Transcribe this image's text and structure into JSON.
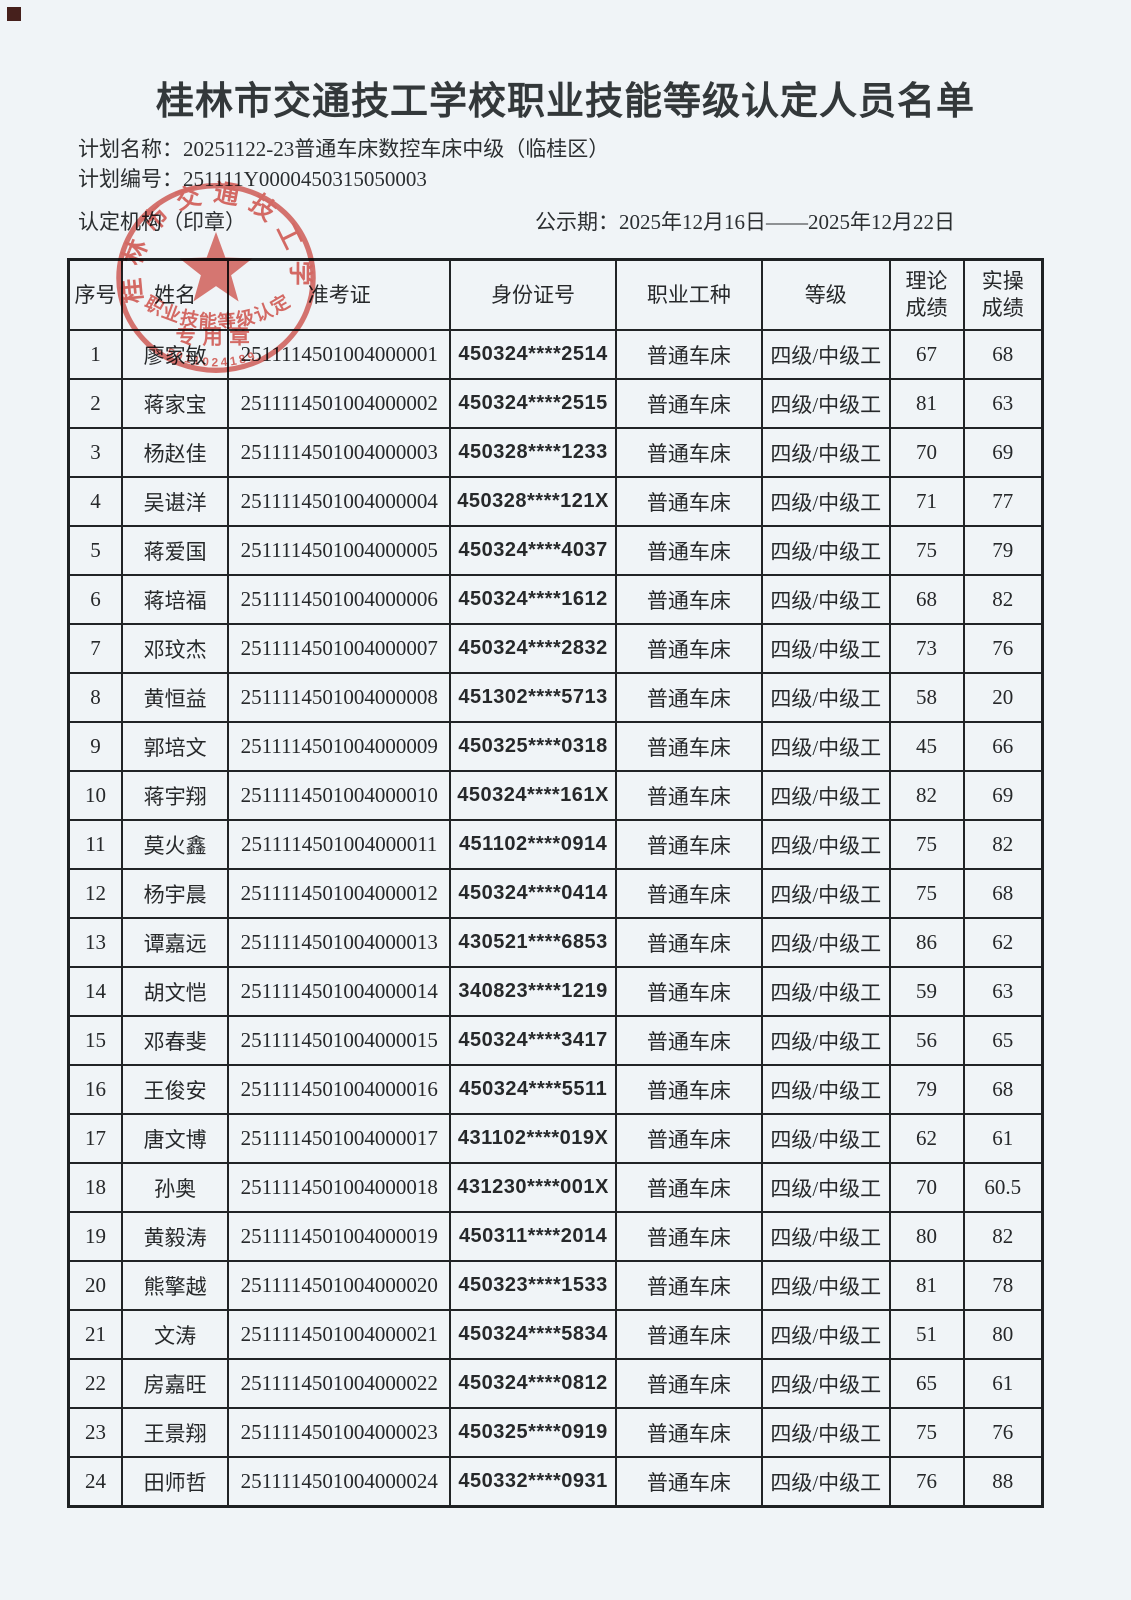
{
  "header": {
    "title": "桂林市交通技工学校职业技能等级认定人员名单",
    "plan_name_label": "计划名称：",
    "plan_name": "20251122-23普通车床数控车床中级（临桂区）",
    "plan_no_label": "计划编号：",
    "plan_no": "251111Y0000450315050003",
    "org_label": "认定机构（印章）",
    "publicity_label": "公示期：",
    "publicity_period": "2025年12月16日——2025年12月22日"
  },
  "seal": {
    "ring_text": "桂林市交通技工学校",
    "cert_text": "职业技能等级认定",
    "seal_type": "专用章",
    "number": "5011024189",
    "color": "#d9534b"
  },
  "table": {
    "headers": [
      "序号",
      "姓名",
      "准考证",
      "身份证号",
      "职业工种",
      "等级",
      "理论\n成绩",
      "实操\n成绩"
    ],
    "col_keys": [
      "index",
      "name",
      "ticket-no",
      "id-no",
      "occupation",
      "level",
      "theory-score",
      "practice-score"
    ],
    "rows": [
      [
        "1",
        "廖家敏",
        "2511114501004000001",
        "450324****2514",
        "普通车床",
        "四级/中级工",
        "67",
        "68"
      ],
      [
        "2",
        "蒋家宝",
        "2511114501004000002",
        "450324****2515",
        "普通车床",
        "四级/中级工",
        "81",
        "63"
      ],
      [
        "3",
        "杨赵佳",
        "2511114501004000003",
        "450328****1233",
        "普通车床",
        "四级/中级工",
        "70",
        "69"
      ],
      [
        "4",
        "吴谌洋",
        "2511114501004000004",
        "450328****121X",
        "普通车床",
        "四级/中级工",
        "71",
        "77"
      ],
      [
        "5",
        "蒋爱国",
        "2511114501004000005",
        "450324****4037",
        "普通车床",
        "四级/中级工",
        "75",
        "79"
      ],
      [
        "6",
        "蒋培福",
        "2511114501004000006",
        "450324****1612",
        "普通车床",
        "四级/中级工",
        "68",
        "82"
      ],
      [
        "7",
        "邓玟杰",
        "2511114501004000007",
        "450324****2832",
        "普通车床",
        "四级/中级工",
        "73",
        "76"
      ],
      [
        "8",
        "黄恒益",
        "2511114501004000008",
        "451302****5713",
        "普通车床",
        "四级/中级工",
        "58",
        "20"
      ],
      [
        "9",
        "郭培文",
        "2511114501004000009",
        "450325****0318",
        "普通车床",
        "四级/中级工",
        "45",
        "66"
      ],
      [
        "10",
        "蒋宇翔",
        "2511114501004000010",
        "450324****161X",
        "普通车床",
        "四级/中级工",
        "82",
        "69"
      ],
      [
        "11",
        "莫火鑫",
        "2511114501004000011",
        "451102****0914",
        "普通车床",
        "四级/中级工",
        "75",
        "82"
      ],
      [
        "12",
        "杨宇晨",
        "2511114501004000012",
        "450324****0414",
        "普通车床",
        "四级/中级工",
        "75",
        "68"
      ],
      [
        "13",
        "谭嘉远",
        "2511114501004000013",
        "430521****6853",
        "普通车床",
        "四级/中级工",
        "86",
        "62"
      ],
      [
        "14",
        "胡文恺",
        "2511114501004000014",
        "340823****1219",
        "普通车床",
        "四级/中级工",
        "59",
        "63"
      ],
      [
        "15",
        "邓春斐",
        "2511114501004000015",
        "450324****3417",
        "普通车床",
        "四级/中级工",
        "56",
        "65"
      ],
      [
        "16",
        "王俊安",
        "2511114501004000016",
        "450324****5511",
        "普通车床",
        "四级/中级工",
        "79",
        "68"
      ],
      [
        "17",
        "唐文博",
        "2511114501004000017",
        "431102****019X",
        "普通车床",
        "四级/中级工",
        "62",
        "61"
      ],
      [
        "18",
        "孙奥",
        "2511114501004000018",
        "431230****001X",
        "普通车床",
        "四级/中级工",
        "70",
        "60.5"
      ],
      [
        "19",
        "黄毅涛",
        "2511114501004000019",
        "450311****2014",
        "普通车床",
        "四级/中级工",
        "80",
        "82"
      ],
      [
        "20",
        "熊擎越",
        "2511114501004000020",
        "450323****1533",
        "普通车床",
        "四级/中级工",
        "81",
        "78"
      ],
      [
        "21",
        "文涛",
        "2511114501004000021",
        "450324****5834",
        "普通车床",
        "四级/中级工",
        "51",
        "80"
      ],
      [
        "22",
        "房嘉旺",
        "2511114501004000022",
        "450324****0812",
        "普通车床",
        "四级/中级工",
        "65",
        "61"
      ],
      [
        "23",
        "王景翔",
        "2511114501004000023",
        "450325****0919",
        "普通车床",
        "四级/中级工",
        "75",
        "76"
      ],
      [
        "24",
        "田师哲",
        "2511114501004000024",
        "450332****0931",
        "普通车床",
        "四级/中级工",
        "76",
        "88"
      ]
    ]
  }
}
